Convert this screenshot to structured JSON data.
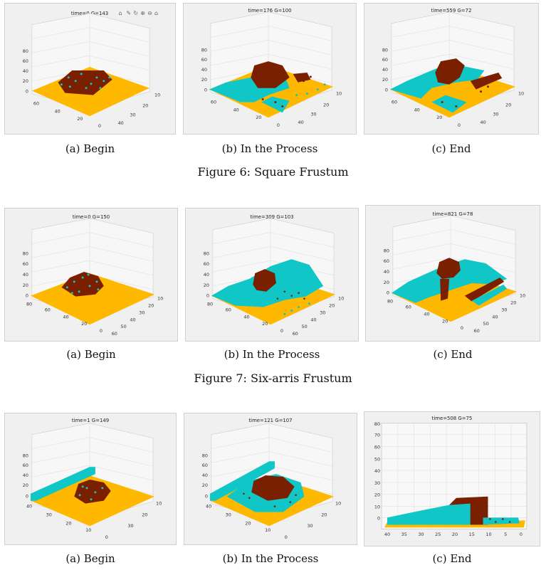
{
  "colors": {
    "floor": "#FFB800",
    "cyan": "#11C6C6",
    "brown": "#7A1F00",
    "wall": "#f8f8f8",
    "grid": "#dcdcdc"
  },
  "figures": [
    {
      "caption": "Figure 6: Square Frustum",
      "panels": [
        {
          "title": "time=0  G=143",
          "caption": "(a)  Begin",
          "z_ticks": [
            "80",
            "60",
            "40",
            "20",
            "0"
          ],
          "left_ticks": [
            "60",
            "40",
            "20",
            "0"
          ],
          "right_ticks": [
            "10",
            "20",
            "30",
            "40"
          ],
          "toolbar_icons": [
            "pan-icon",
            "brush-icon",
            "rotate-icon",
            "zoom-in-icon",
            "zoom-out-icon",
            "home-icon"
          ]
        },
        {
          "title": "time=176  G=100",
          "caption": "(b)  In the Process",
          "z_ticks": [
            "80",
            "60",
            "40",
            "20",
            "0"
          ],
          "left_ticks": [
            "60",
            "40",
            "20",
            "0"
          ],
          "right_ticks": [
            "10",
            "20",
            "30",
            "40"
          ]
        },
        {
          "title": "time=559  G=72",
          "caption": "(c)  End",
          "z_ticks": [
            "80",
            "60",
            "40",
            "20",
            "0"
          ],
          "left_ticks": [
            "60",
            "40",
            "20",
            "0"
          ],
          "right_ticks": [
            "10",
            "20",
            "30",
            "40"
          ]
        }
      ]
    },
    {
      "caption": "Figure 7: Six-arris Frustum",
      "panels": [
        {
          "title": "time=0  G=150",
          "caption": "(a)  Begin",
          "z_ticks": [
            "80",
            "60",
            "40",
            "20",
            "0"
          ],
          "left_ticks": [
            "80",
            "60",
            "40",
            "20",
            "0"
          ],
          "right_ticks": [
            "10",
            "20",
            "30",
            "40",
            "50",
            "60"
          ]
        },
        {
          "title": "time=309  G=103",
          "caption": "(b)  In the Process",
          "z_ticks": [
            "80",
            "60",
            "40",
            "20",
            "0"
          ],
          "left_ticks": [
            "80",
            "60",
            "40",
            "20",
            "0"
          ],
          "right_ticks": [
            "10",
            "20",
            "30",
            "40",
            "50",
            "60"
          ]
        },
        {
          "title": "time=821  G=78",
          "caption": "(c)  End",
          "z_ticks": [
            "80",
            "60",
            "40",
            "20",
            "0"
          ],
          "left_ticks": [
            "80",
            "60",
            "40",
            "20",
            "0"
          ],
          "right_ticks": [
            "10",
            "20",
            "30",
            "40",
            "50",
            "60"
          ]
        }
      ]
    },
    {
      "caption": "",
      "panels": [
        {
          "title": "time=1  G=149",
          "caption": "(a)  Begin",
          "z_ticks": [
            "80",
            "60",
            "40",
            "20",
            "0"
          ],
          "left_ticks": [
            "40",
            "30",
            "20",
            "10",
            "0"
          ],
          "right_ticks": [
            "10",
            "20",
            "30"
          ]
        },
        {
          "title": "time=121  G=107",
          "caption": "(b)  In the Process",
          "z_ticks": [
            "80",
            "60",
            "40",
            "20",
            "0"
          ],
          "left_ticks": [
            "40",
            "30",
            "20",
            "10",
            "0"
          ],
          "right_ticks": [
            "10",
            "20",
            "30"
          ]
        },
        {
          "title": "time=508  G=75",
          "caption": "(c)  End",
          "z_ticks": [
            "80",
            "70",
            "60",
            "50",
            "40",
            "30",
            "20",
            "10",
            "0"
          ],
          "x_ticks": [
            "40",
            "35",
            "30",
            "25",
            "20",
            "15",
            "10",
            "5",
            "0"
          ]
        }
      ]
    }
  ]
}
